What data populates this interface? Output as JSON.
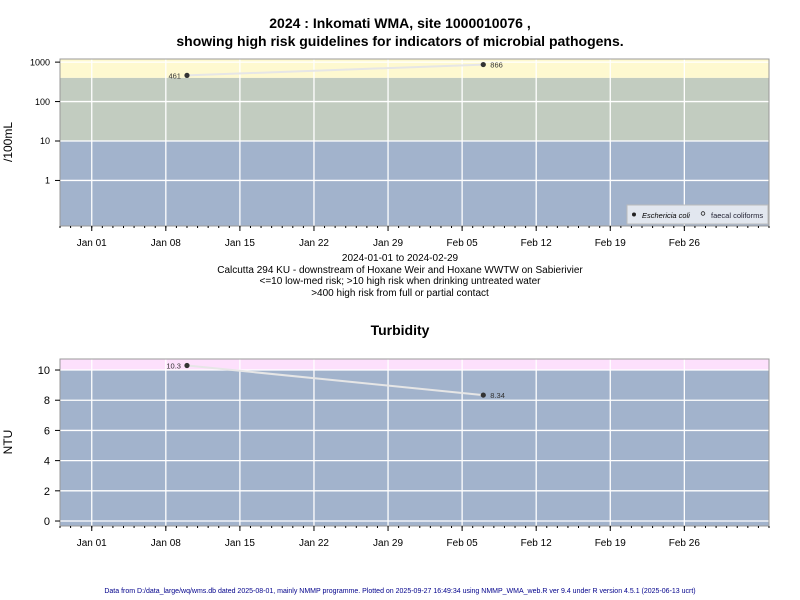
{
  "title_line1": "2024 : Inkomati WMA, site 1000010076 ,",
  "title_line2": "showing high risk guidelines for indicators of microbial pathogens.",
  "subtitle": [
    "2024-01-01 to 2024-02-29",
    "Calcutta 294 KU - downstream of Hoxane Weir and Hoxane WWTW on Sabierivier",
    "<=10 low-med risk; >10 high risk when drinking untreated water",
    ">400 high risk from full or partial contact"
  ],
  "footer": "Data from D:/data_large/wq/wms.db dated 2025-08-01, mainly NMMP programme. Plotted on 2025-09-27 16:49:34 using NMMP_WMA_web.R ver 9.4 under R version 4.5.1 (2025-06-13 ucrt)",
  "chart_data": [
    {
      "type": "line",
      "ylabel": "/100mL",
      "y_scale": "log",
      "ylim": [
        0.07,
        1200
      ],
      "xlim": [
        "2023-12-29",
        "2024-03-05"
      ],
      "yticks": [
        "1",
        "10",
        "100",
        "1000"
      ],
      "xticks": [
        "Jan 01",
        "Jan 08",
        "Jan 15",
        "Jan 22",
        "Jan 29",
        "Feb 05",
        "Feb 12",
        "Feb 19",
        "Feb 26"
      ],
      "xtick_dates": [
        "2024-01-01",
        "2024-01-08",
        "2024-01-15",
        "2024-01-22",
        "2024-01-29",
        "2024-02-05",
        "2024-02-12",
        "2024-02-19",
        "2024-02-26"
      ],
      "grid": true,
      "bands": [
        {
          "from": 0.07,
          "to": 10,
          "color": "#a2b3cc"
        },
        {
          "from": 10,
          "to": 400,
          "color": "#c2ccc0"
        },
        {
          "from": 400,
          "to": 1200,
          "color": "#fef9d0"
        }
      ],
      "series": [
        {
          "name": "Eschericia coli",
          "marker": "filled",
          "x": [
            "2024-01-10",
            "2024-02-07"
          ],
          "y": [
            461,
            866
          ],
          "labels": [
            "461",
            "866"
          ]
        }
      ],
      "legend": {
        "position": "bottom-right",
        "entries": [
          "Eschericia coli",
          "faecal coliforms"
        ]
      }
    },
    {
      "type": "line",
      "title": "Turbidity",
      "ylabel": "NTU",
      "ylim": [
        -0.33,
        10.73
      ],
      "xlim": [
        "2023-12-29",
        "2024-03-05"
      ],
      "yticks": [
        "0",
        "2",
        "4",
        "6",
        "8",
        "10"
      ],
      "xticks": [
        "Jan 01",
        "Jan 08",
        "Jan 15",
        "Jan 22",
        "Jan 29",
        "Feb 05",
        "Feb 12",
        "Feb 19",
        "Feb 26"
      ],
      "xtick_dates": [
        "2024-01-01",
        "2024-01-08",
        "2024-01-15",
        "2024-01-22",
        "2024-01-29",
        "2024-02-05",
        "2024-02-12",
        "2024-02-19",
        "2024-02-26"
      ],
      "grid": true,
      "bands": [
        {
          "from": -0.33,
          "to": 10,
          "color": "#a2b3cc"
        },
        {
          "from": 10,
          "to": 10.73,
          "color": "#fde0fc"
        }
      ],
      "series": [
        {
          "x": [
            "2024-01-10",
            "2024-02-07"
          ],
          "y": [
            10.3,
            8.34
          ],
          "labels": [
            "10.3",
            "8.34"
          ]
        }
      ]
    }
  ]
}
